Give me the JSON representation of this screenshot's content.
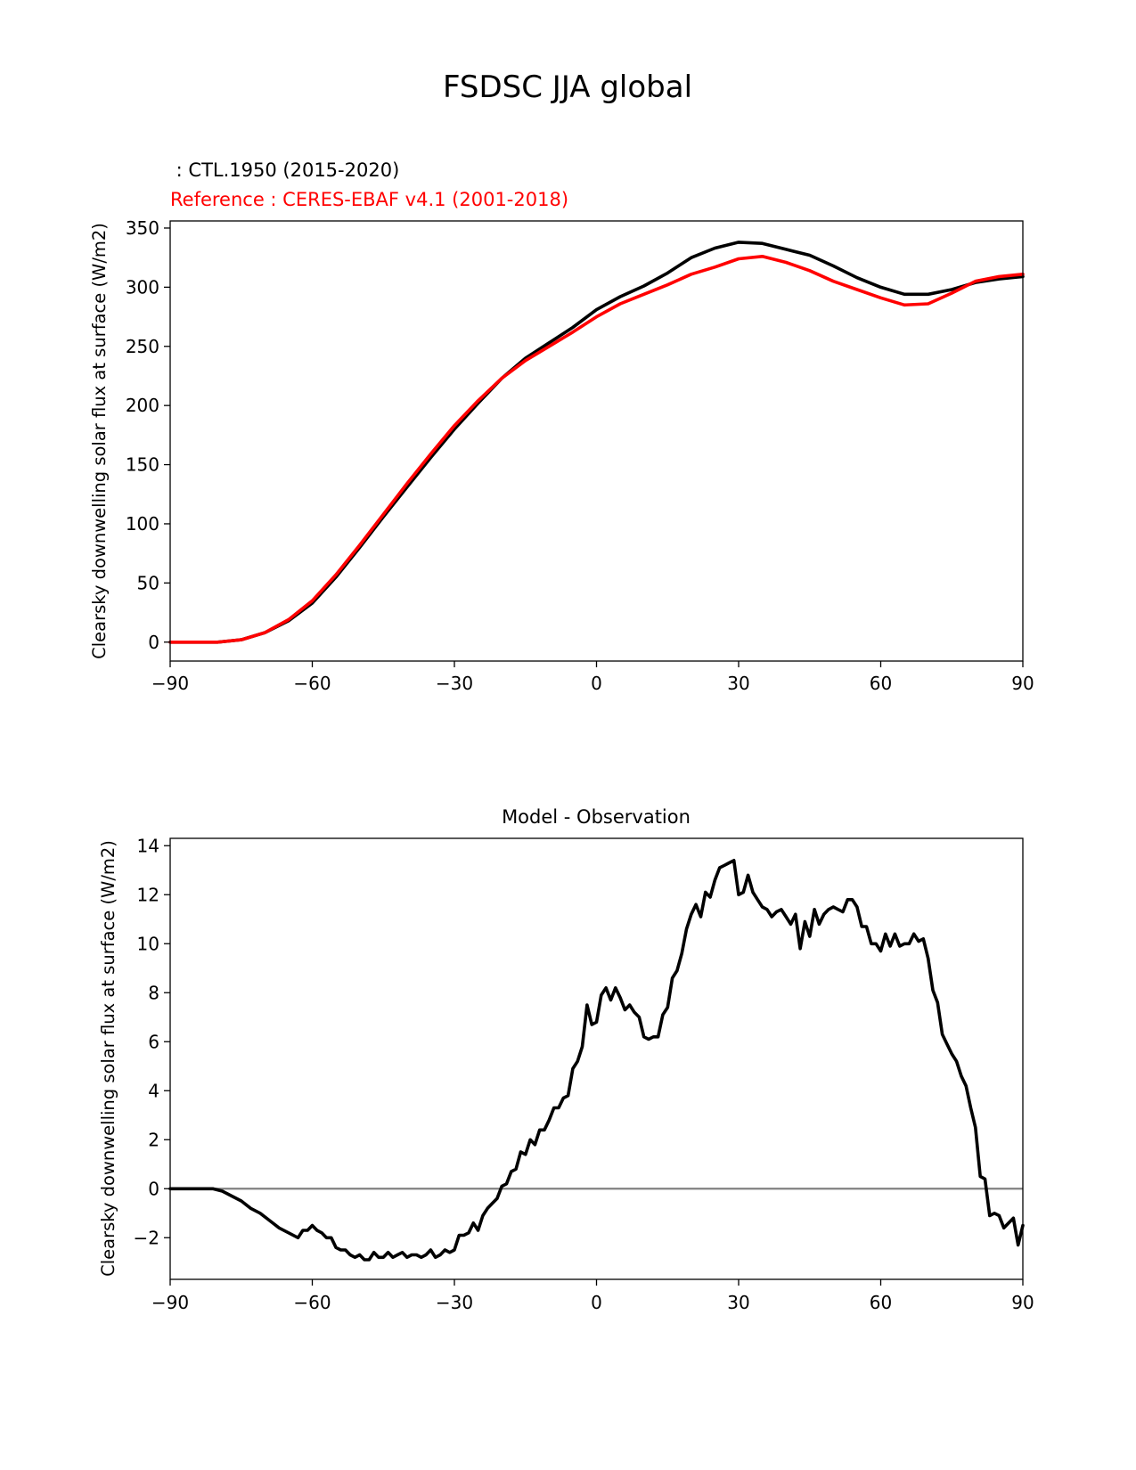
{
  "figure": {
    "title": "FSDSC JJA global"
  },
  "top_panel": {
    "test_label": " : CTL.1950 (2015-2020)",
    "ref_label": "Reference : CERES-EBAF v4.1 (2001-2018)"
  },
  "bottom_panel": {
    "title": "Model - Observation"
  },
  "colors": {
    "test": "#000000",
    "ref": "#ff0000",
    "zero_line": "#808080"
  },
  "chart_data": [
    {
      "type": "line",
      "title": "",
      "xlabel": "",
      "ylabel": "Clearsky downwelling solar flux at surface (W/m2)",
      "xlim": [
        -90,
        90
      ],
      "ylim": [
        -16,
        356
      ],
      "xticks": [
        -90,
        -60,
        -30,
        0,
        30,
        60,
        90
      ],
      "xtick_labels": [
        "−90",
        "−60",
        "−30",
        "0",
        "30",
        "60",
        "90"
      ],
      "yticks": [
        0,
        50,
        100,
        150,
        200,
        250,
        300,
        350
      ],
      "ytick_labels": [
        "0",
        "50",
        "100",
        "150",
        "200",
        "250",
        "300",
        "350"
      ],
      "series": [
        {
          "name": "CTL.1950 (2015-2020)",
          "x": [
            -90,
            -85,
            -80,
            -75,
            -70,
            -65,
            -60,
            -55,
            -50,
            -45,
            -40,
            -35,
            -30,
            -25,
            -20,
            -15,
            -10,
            -5,
            0,
            5,
            10,
            15,
            20,
            25,
            30,
            35,
            40,
            45,
            50,
            55,
            60,
            65,
            70,
            75,
            80,
            85,
            90
          ],
          "y": [
            0,
            0,
            0,
            2,
            8,
            18,
            33,
            55,
            80,
            106,
            131,
            156,
            180,
            202,
            223,
            240,
            253,
            266,
            281,
            292,
            301,
            312,
            325,
            333,
            338,
            337,
            332,
            327,
            318,
            308,
            300,
            294,
            294,
            298,
            304,
            307,
            309
          ]
        },
        {
          "name": "Reference : CERES-EBAF v4.1 (2001-2018)",
          "x": [
            -90,
            -85,
            -80,
            -75,
            -70,
            -65,
            -60,
            -55,
            -50,
            -45,
            -40,
            -35,
            -30,
            -25,
            -20,
            -15,
            -10,
            -5,
            0,
            5,
            10,
            15,
            20,
            25,
            30,
            35,
            40,
            45,
            50,
            55,
            60,
            65,
            70,
            75,
            80,
            85,
            90
          ],
          "y": [
            0,
            0,
            0,
            2,
            8,
            19,
            35,
            57,
            82,
            108,
            134,
            159,
            183,
            204,
            223,
            238,
            250,
            262,
            275,
            286,
            294,
            302,
            311,
            317,
            324,
            326,
            321,
            314,
            305,
            298,
            291,
            285,
            286,
            295,
            305,
            309,
            311
          ]
        }
      ]
    },
    {
      "type": "line",
      "title": "Model - Observation",
      "xlabel": "",
      "ylabel": "Clearsky downwelling solar flux at surface (W/m2)",
      "xlim": [
        -90,
        90
      ],
      "ylim": [
        -3.7,
        14.3
      ],
      "xticks": [
        -90,
        -60,
        -30,
        0,
        30,
        60,
        90
      ],
      "xtick_labels": [
        "−90",
        "−60",
        "−30",
        "0",
        "30",
        "60",
        "90"
      ],
      "yticks": [
        -2,
        0,
        2,
        4,
        6,
        8,
        10,
        12,
        14
      ],
      "ytick_labels": [
        "−2",
        "0",
        "2",
        "4",
        "6",
        "8",
        "10",
        "12",
        "14"
      ],
      "reference_line": 0,
      "series": [
        {
          "name": "Model - Observation",
          "x": [
            -90,
            -85,
            -81,
            -79,
            -77,
            -75,
            -73,
            -71,
            -69,
            -67,
            -65,
            -63,
            -62,
            -61,
            -60,
            -59,
            -58,
            -57,
            -56,
            -55,
            -54,
            -53,
            -52,
            -51,
            -50,
            -49,
            -48,
            -47,
            -46,
            -45,
            -44,
            -43,
            -42,
            -41,
            -40,
            -39,
            -38,
            -37,
            -36,
            -35,
            -34,
            -33,
            -32,
            -31,
            -30,
            -29,
            -28,
            -27,
            -26,
            -25,
            -24,
            -23,
            -22,
            -21,
            -20,
            -19,
            -18,
            -17,
            -16,
            -15,
            -14,
            -13,
            -12,
            -11,
            -10,
            -9,
            -8,
            -7,
            -6,
            -5,
            -4,
            -3,
            -2,
            -1,
            0,
            1,
            2,
            3,
            4,
            5,
            6,
            7,
            8,
            9,
            10,
            11,
            12,
            13,
            14,
            15,
            16,
            17,
            18,
            19,
            20,
            21,
            22,
            23,
            24,
            25,
            26,
            27,
            28,
            29,
            30,
            31,
            32,
            33,
            34,
            35,
            36,
            37,
            38,
            39,
            40,
            41,
            42,
            43,
            44,
            45,
            46,
            47,
            48,
            49,
            50,
            51,
            52,
            53,
            54,
            55,
            56,
            57,
            58,
            59,
            60,
            61,
            62,
            63,
            64,
            65,
            66,
            67,
            68,
            69,
            70,
            71,
            72,
            73,
            74,
            75,
            76,
            77,
            78,
            79,
            80,
            81,
            82,
            83,
            84,
            85,
            86,
            87,
            88,
            89,
            90
          ],
          "y": [
            0,
            0,
            0,
            -0.1,
            -0.3,
            -0.5,
            -0.8,
            -1.0,
            -1.3,
            -1.6,
            -1.8,
            -2.0,
            -1.7,
            -1.7,
            -1.5,
            -1.7,
            -1.8,
            -2.0,
            -2.0,
            -2.4,
            -2.5,
            -2.5,
            -2.7,
            -2.8,
            -2.7,
            -2.9,
            -2.9,
            -2.6,
            -2.8,
            -2.8,
            -2.6,
            -2.8,
            -2.7,
            -2.6,
            -2.8,
            -2.7,
            -2.7,
            -2.8,
            -2.7,
            -2.5,
            -2.8,
            -2.7,
            -2.5,
            -2.6,
            -2.5,
            -1.9,
            -1.9,
            -1.8,
            -1.4,
            -1.7,
            -1.1,
            -0.8,
            -0.6,
            -0.4,
            0.1,
            0.2,
            0.7,
            0.8,
            1.5,
            1.4,
            2.0,
            1.8,
            2.4,
            2.4,
            2.8,
            3.3,
            3.3,
            3.7,
            3.8,
            4.9,
            5.2,
            5.8,
            7.5,
            6.7,
            6.8,
            7.9,
            8.2,
            7.7,
            8.2,
            7.8,
            7.3,
            7.5,
            7.2,
            7.0,
            6.2,
            6.1,
            6.2,
            6.2,
            7.1,
            7.4,
            8.6,
            8.9,
            9.6,
            10.6,
            11.2,
            11.6,
            11.1,
            12.1,
            11.9,
            12.6,
            13.1,
            13.2,
            13.3,
            13.4,
            12.0,
            12.1,
            12.8,
            12.1,
            11.8,
            11.5,
            11.4,
            11.1,
            11.3,
            11.4,
            11.1,
            10.8,
            11.2,
            9.8,
            10.9,
            10.3,
            11.4,
            10.8,
            11.2,
            11.4,
            11.5,
            11.4,
            11.3,
            11.8,
            11.8,
            11.5,
            10.7,
            10.7,
            10.0,
            10.0,
            9.7,
            10.4,
            9.9,
            10.4,
            9.9,
            10.0,
            10.0,
            10.4,
            10.1,
            10.2,
            9.4,
            8.1,
            7.6,
            6.3,
            5.9,
            5.5,
            5.2,
            4.6,
            4.2,
            3.3,
            2.5,
            0.5,
            0.4,
            -1.1,
            -1.0,
            -1.1,
            -1.6,
            -1.4,
            -1.2,
            -2.3,
            -1.5
          ]
        }
      ]
    }
  ]
}
